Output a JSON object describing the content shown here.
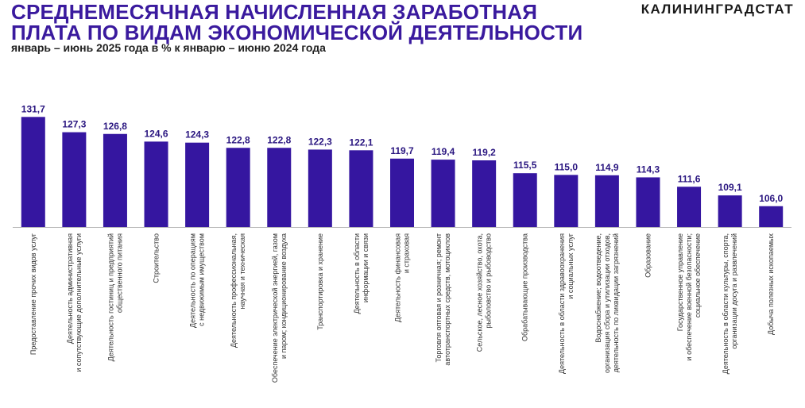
{
  "header": {
    "title_line1": "СРЕДНЕМЕСЯЧНАЯ НАЧИСЛЕННАЯ ЗАРАБОТНАЯ",
    "title_line2": "ПЛАТА ПО ВИДАМ ЭКОНОМИЧЕСКОЙ ДЕЯТЕЛЬНОСТИ",
    "subtitle": "январь – июнь 2025 года в % к январю – июню 2024 года",
    "brand": "КАЛИНИНГРАДСТАТ"
  },
  "colors": {
    "bar": "#3516a0",
    "title": "#3a1a9e",
    "value_label": "#2a1680",
    "axis": "#b8b8b8",
    "category_label": "#333333"
  },
  "chart_data": {
    "type": "bar",
    "title": "",
    "xlabel": "",
    "ylabel": "",
    "grid": false,
    "legend": "none",
    "ylim": [
      100,
      132
    ],
    "categories": [
      [
        "Предоставление прочих видов услуг"
      ],
      [
        "Деятельность административная",
        "и сопутствующие дополнительные услуги"
      ],
      [
        "Деятельность гостиниц и предприятий",
        "общественного питания"
      ],
      [
        "Строительство"
      ],
      [
        "Деятельность по операциям",
        "с недвижимым имуществом"
      ],
      [
        "Деятельность профессиональная,",
        "научная и техническая"
      ],
      [
        "Обеспечение электрической энергией, газом",
        "и паром; кондиционирование воздуха"
      ],
      [
        "Транспортировка и хранение"
      ],
      [
        "Деятельность в области",
        "информации и связи"
      ],
      [
        "Деятельность финансовая",
        "и страховая"
      ],
      [
        "Торговля оптовая и розничная; ремонт",
        "автотранспортных средств, мотоциклов"
      ],
      [
        "Сельское, лесное хозяйство, охота,",
        "рыболовство и рыбоводство"
      ],
      [
        "Обрабатывающие производства"
      ],
      [
        "Деятельность в области здравоохранения",
        "и социальных услуг"
      ],
      [
        "Водоснабжение; водоотведение,",
        "организация сбора и утилизации отходов,",
        "деятельность по ликвидации загрязнений"
      ],
      [
        "Образование"
      ],
      [
        "Государственное управление",
        "и обеспечение военной безопасности;",
        "социальное обеспечение"
      ],
      [
        "Деятельность в области культуры, спорта,",
        "организации досуга и развлечений"
      ],
      [
        "Добыча полезных ископаемых"
      ]
    ],
    "values": [
      131.7,
      127.3,
      126.8,
      124.6,
      124.3,
      122.8,
      122.8,
      122.3,
      122.1,
      119.7,
      119.4,
      119.2,
      115.5,
      115.0,
      114.9,
      114.3,
      111.6,
      109.1,
      106.0
    ],
    "value_labels": [
      "131,7",
      "127,3",
      "126,8",
      "124,6",
      "124,3",
      "122,8",
      "122,8",
      "122,3",
      "122,1",
      "119,7",
      "119,4",
      "119,2",
      "115,5",
      "115,0",
      "114,9",
      "114,3",
      "111,6",
      "109,1",
      "106,0"
    ]
  }
}
